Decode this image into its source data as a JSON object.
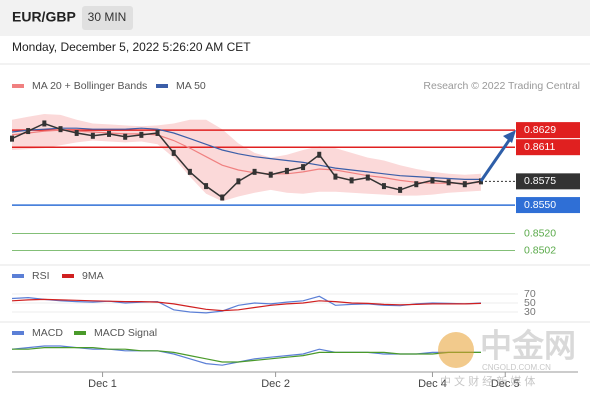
{
  "header": {
    "symbol": "EUR/GBP",
    "interval": "30 MIN",
    "timestamp": "Monday, December 5, 2022 5:26:20 AM CET",
    "credit": "Research © 2022 Trading Central"
  },
  "watermark": {
    "brand": "中金网",
    "site": "CNGOLD.COM.CN",
    "tagline": "中 文 财 经 新 媒 体"
  },
  "chart_data": [
    {
      "type": "line",
      "x": [
        0,
        1,
        2,
        3,
        4,
        5,
        6,
        7,
        8,
        9,
        10,
        11,
        12,
        13,
        14,
        15,
        16,
        17,
        18,
        19,
        20,
        21,
        22,
        23,
        24,
        25,
        26,
        27,
        28,
        29
      ],
      "xlim": [
        0,
        35
      ],
      "xticks": [
        {
          "value": 5.6,
          "label": "Dec 1"
        },
        {
          "value": 16.3,
          "label": "Dec 2"
        },
        {
          "value": 26,
          "label": "Dec 4"
        },
        {
          "value": 30.5,
          "label": "Dec 5"
        }
      ],
      "ylim": [
        0.849,
        0.8666
      ],
      "price_color": "#333333",
      "values": [
        0.862,
        0.8628,
        0.8636,
        0.863,
        0.8626,
        0.8623,
        0.8625,
        0.8622,
        0.8624,
        0.8626,
        0.8605,
        0.8585,
        0.857,
        0.8558,
        0.8575,
        0.8585,
        0.8582,
        0.8586,
        0.859,
        0.8603,
        0.858,
        0.8576,
        0.8579,
        0.857,
        0.8566,
        0.8572,
        0.8576,
        0.8574,
        0.8572,
        0.8575
      ],
      "bands": {
        "color": "#fbd9d9",
        "upper": [
          0.864,
          0.8643,
          0.8646,
          0.8645,
          0.864,
          0.8636,
          0.8635,
          0.8634,
          0.8633,
          0.8634,
          0.8636,
          0.864,
          0.864,
          0.863,
          0.8615,
          0.8605,
          0.86,
          0.8603,
          0.8608,
          0.8612,
          0.861,
          0.8605,
          0.86,
          0.8597,
          0.8592,
          0.8588,
          0.8585,
          0.8583,
          0.8582,
          0.8583
        ],
        "lower": [
          0.8608,
          0.8609,
          0.861,
          0.8613,
          0.8616,
          0.8618,
          0.8617,
          0.8616,
          0.8617,
          0.8614,
          0.86,
          0.858,
          0.8562,
          0.8554,
          0.8559,
          0.8563,
          0.8566,
          0.8563,
          0.8562,
          0.8564,
          0.8564,
          0.8563,
          0.8562,
          0.8561,
          0.856,
          0.856,
          0.8561,
          0.8563,
          0.8564,
          0.8565
        ]
      },
      "series": [
        {
          "name": "MA 20 + Bollinger Bands",
          "color": "#f08080",
          "values": [
            0.8624,
            0.8626,
            0.8628,
            0.8629,
            0.8628,
            0.8627,
            0.8626,
            0.8625,
            0.8625,
            0.8624,
            0.8618,
            0.861,
            0.8601,
            0.8592,
            0.8587,
            0.8584,
            0.8583,
            0.8583,
            0.8585,
            0.8588,
            0.8587,
            0.8584,
            0.8581,
            0.8579,
            0.8576,
            0.8574,
            0.8573,
            0.8573,
            0.8573,
            0.8574
          ]
        },
        {
          "name": "MA 50",
          "color": "#3b5ea8",
          "values": [
            0.8627,
            0.8629,
            0.863,
            0.8631,
            0.8631,
            0.863,
            0.863,
            0.863,
            0.8631,
            0.863,
            0.8626,
            0.862,
            0.8614,
            0.8608,
            0.8604,
            0.8601,
            0.8599,
            0.8597,
            0.8595,
            0.8592,
            0.8589,
            0.8587,
            0.8585,
            0.8583,
            0.8581,
            0.858,
            0.8579,
            0.8578,
            0.8577,
            0.8577
          ]
        }
      ],
      "levels": [
        {
          "value": 0.8629,
          "color": "#e02020",
          "style": "box"
        },
        {
          "value": 0.8611,
          "color": "#e02020",
          "style": "box"
        },
        {
          "value": 0.8575,
          "color": "#333333",
          "style": "current"
        },
        {
          "value": 0.855,
          "label": "0.8550",
          "color": "#2f6fd6",
          "style": "box"
        },
        {
          "value": 0.852,
          "label": "0.8520",
          "color": "#5aaa4a",
          "style": "text"
        },
        {
          "value": 0.8502,
          "color": "#5aaa4a",
          "style": "text"
        }
      ]
    },
    {
      "type": "line",
      "ylim": [
        10,
        90
      ],
      "yticks": [
        70,
        50,
        30
      ],
      "series": [
        {
          "name": "RSI",
          "color": "#5b7fd6",
          "values": [
            60,
            62,
            58,
            55,
            53,
            52,
            54,
            50,
            52,
            53,
            35,
            30,
            28,
            32,
            45,
            50,
            48,
            52,
            55,
            65,
            45,
            47,
            48,
            45,
            44,
            48,
            50,
            49,
            48,
            50
          ]
        },
        {
          "name": "9MA",
          "color": "#d02020",
          "values": [
            55,
            57,
            58,
            57,
            56,
            55,
            54,
            53,
            53,
            52,
            48,
            42,
            36,
            33,
            35,
            40,
            45,
            48,
            50,
            55,
            53,
            50,
            49,
            47,
            46,
            47,
            48,
            48,
            48,
            49
          ]
        }
      ]
    },
    {
      "type": "line",
      "ylim": [
        -0.0012,
        0.0008
      ],
      "series": [
        {
          "name": "MACD",
          "color": "#5b7fd6",
          "values": [
            0.0001,
            0.0002,
            0.0003,
            0.0003,
            0.0002,
            0.0001,
            0.0001,
            0,
            0,
            0,
            -0.0002,
            -0.0005,
            -0.0008,
            -0.0009,
            -0.0007,
            -0.0005,
            -0.0004,
            -0.0003,
            -0.0002,
            0.0001,
            -0.0001,
            -0.0001,
            -0.0001,
            -0.0002,
            -0.0002,
            -0.0002,
            -0.0001,
            -0.0001,
            -0.0001,
            -0.0001
          ]
        },
        {
          "name": "MACD Signal",
          "color": "#4a9a2a",
          "values": [
            0.0001,
            0.0001,
            0.0002,
            0.0002,
            0.0002,
            0.0002,
            0.0001,
            0.0001,
            0,
            0,
            -0.0001,
            -0.0003,
            -0.0005,
            -0.0007,
            -0.0007,
            -0.0006,
            -0.0005,
            -0.0004,
            -0.0003,
            -0.0001,
            -0.0001,
            -0.0001,
            -0.0001,
            -0.0001,
            -0.0002,
            -0.0002,
            -0.0002,
            -0.0001,
            -0.0001,
            -0.0001
          ]
        }
      ]
    }
  ]
}
